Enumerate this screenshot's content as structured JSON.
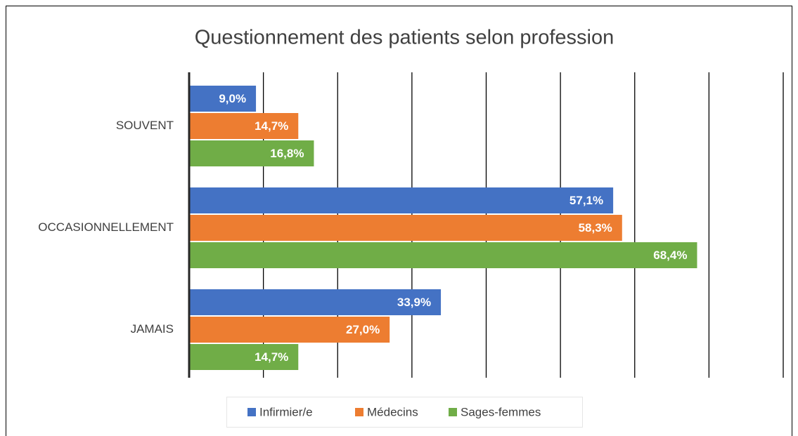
{
  "chart_data": {
    "type": "hbar",
    "title": "Questionnement des patients selon profession",
    "categories": [
      "SOUVENT",
      "OCCASIONNELLEMENT",
      "JAMAIS"
    ],
    "series": [
      {
        "name": "Infirmier/e",
        "color": "#4472c4",
        "values": [
          9.0,
          57.1,
          33.9
        ],
        "value_labels": [
          "9,0%",
          "57,1%",
          "33,9%"
        ]
      },
      {
        "name": "Médecins",
        "color": "#ed7d31",
        "values": [
          14.7,
          58.3,
          27.0
        ],
        "value_labels": [
          "14,7%",
          "58,3%",
          "27,0%"
        ]
      },
      {
        "name": "Sages-femmes",
        "color": "#70ad47",
        "values": [
          16.8,
          68.4,
          14.7
        ],
        "value_labels": [
          "16,8%",
          "68,4%",
          "14,7%"
        ]
      }
    ],
    "xlim": [
      0,
      80
    ],
    "xticks": [
      0,
      10,
      20,
      30,
      40,
      50,
      60,
      70,
      80
    ],
    "grid": true,
    "legend": "bottom"
  }
}
